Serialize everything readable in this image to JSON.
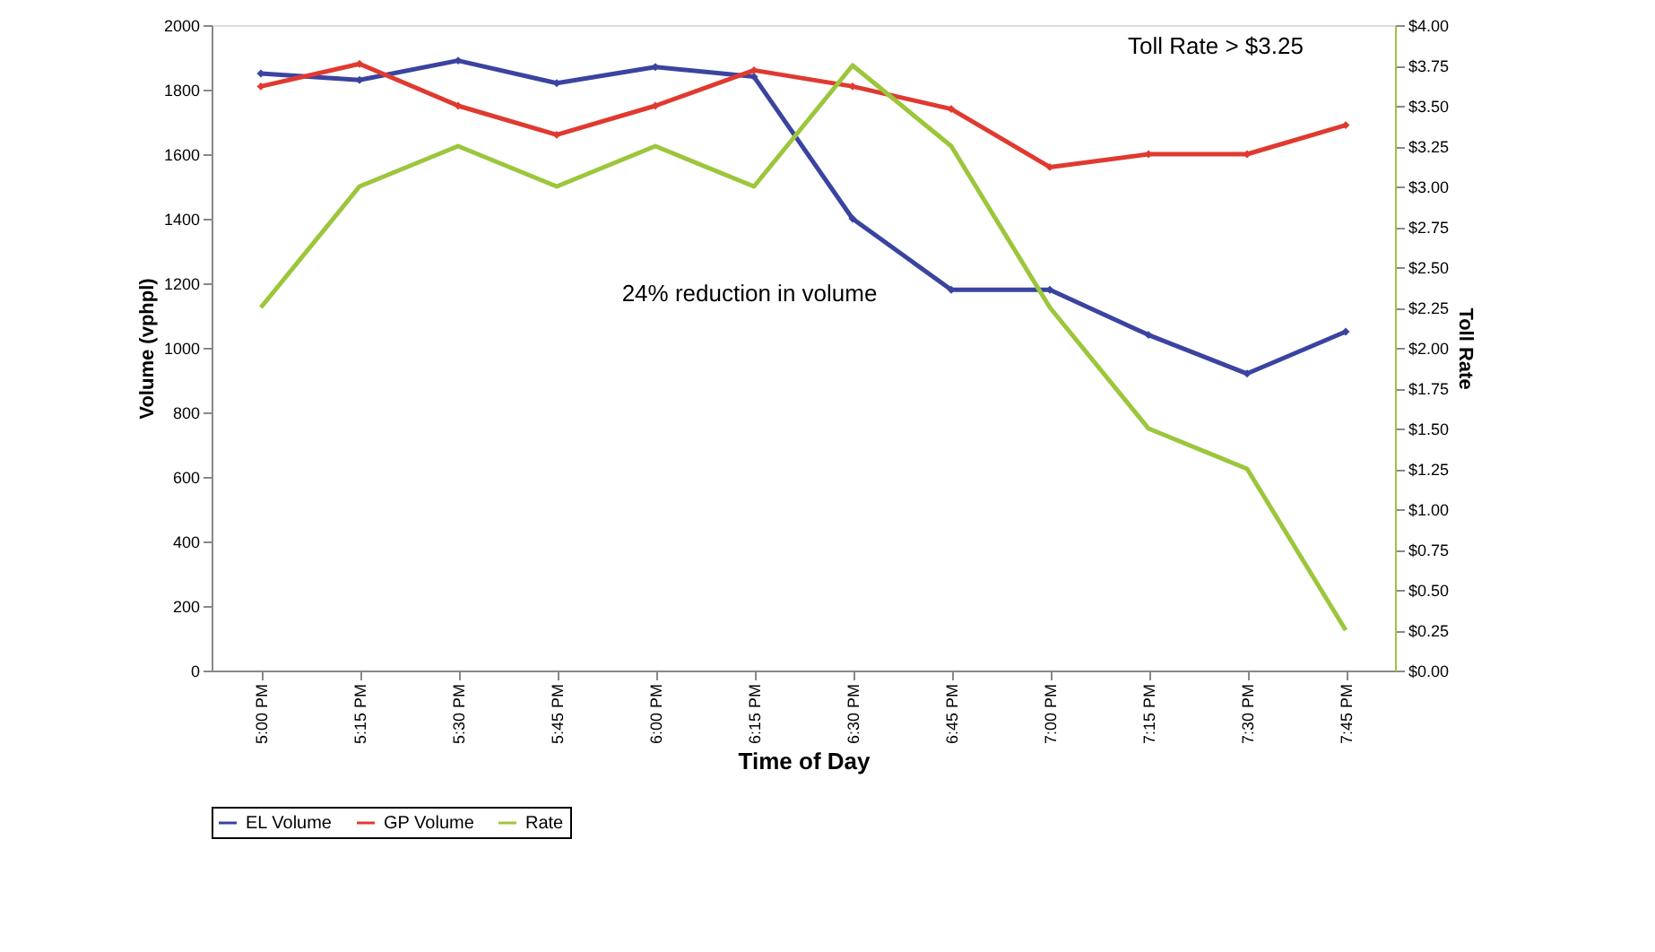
{
  "chart_data": {
    "type": "line",
    "categories": [
      "5:00 PM",
      "5:15 PM",
      "5:30 PM",
      "5:45 PM",
      "6:00 PM",
      "6:15 PM",
      "6:30 PM",
      "6:45 PM",
      "7:00 PM",
      "7:15 PM",
      "7:30 PM",
      "7:45 PM"
    ],
    "series": [
      {
        "name": "EL Volume",
        "color": "#3a44a0",
        "marker": "diamond",
        "values": [
          1850,
          1830,
          1890,
          1820,
          1870,
          1840,
          1400,
          1180,
          1180,
          1040,
          920,
          1050
        ]
      },
      {
        "name": "GP Volume",
        "color": "#e03a30",
        "marker": "diamond",
        "values": [
          1810,
          1880,
          1750,
          1660,
          1750,
          1860,
          1810,
          1740,
          1560,
          1600,
          1600,
          1690
        ]
      },
      {
        "name": "Rate",
        "color": "#9cc63b",
        "axis": "y2",
        "values": [
          2.25,
          3.0,
          3.25,
          3.0,
          3.25,
          3.0,
          3.75,
          3.25,
          2.25,
          1.5,
          1.25,
          0.25
        ]
      }
    ],
    "xlabel": "Time of Day",
    "ylabel": "Volume (vphpl)",
    "y2label": "Toll Rate",
    "ylim": [
      0,
      2000
    ],
    "yticks": [
      0,
      200,
      400,
      600,
      800,
      1000,
      1200,
      1400,
      1600,
      1800,
      2000
    ],
    "y2lim": [
      0,
      4
    ],
    "y2ticks": [
      {
        "value": 0,
        "label": "$0.00"
      },
      {
        "value": 0.25,
        "label": "$0.25"
      },
      {
        "value": 0.5,
        "label": "$0.50"
      },
      {
        "value": 0.75,
        "label": "$0.75"
      },
      {
        "value": 1,
        "label": "$1.00"
      },
      {
        "value": 1.25,
        "label": "$1.25"
      },
      {
        "value": 1.5,
        "label": "$1.50"
      },
      {
        "value": 1.75,
        "label": "$1.75"
      },
      {
        "value": 2,
        "label": "$2.00"
      },
      {
        "value": 2.25,
        "label": "$2.25"
      },
      {
        "value": 2.5,
        "label": "$2.50"
      },
      {
        "value": 2.75,
        "label": "$2.75"
      },
      {
        "value": 3,
        "label": "$3.00"
      },
      {
        "value": 3.25,
        "label": "$3.25"
      },
      {
        "value": 3.5,
        "label": "$3.50"
      },
      {
        "value": 3.75,
        "label": "$3.75"
      },
      {
        "value": 4,
        "label": "$4.00"
      }
    ],
    "annotations": [
      "Toll Rate > $3.25",
      "24% reduction in volume"
    ],
    "grid": false,
    "legend": "bottom",
    "line_style": "solid"
  }
}
